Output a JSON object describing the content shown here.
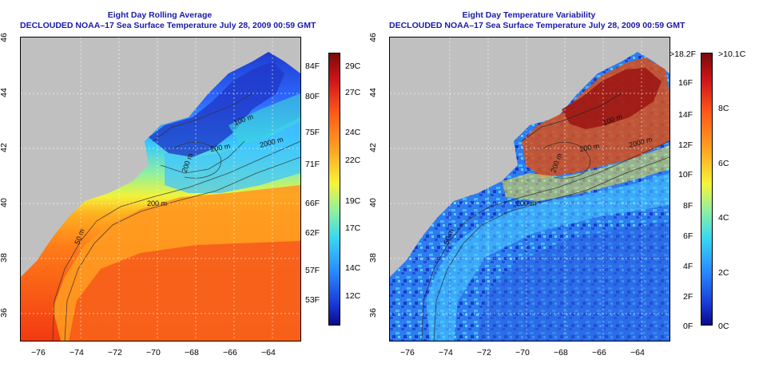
{
  "left": {
    "title": "Eight Day Rolling Average",
    "subtitle": "DECLOUDED NOAA–17 Sea Surface Temperature July 28, 2009 00:59 GMT",
    "legend_f": [
      "84F",
      "80F",
      "75F",
      "71F",
      "66F",
      "62F",
      "57F",
      "53F"
    ],
    "legend_c": [
      "29C",
      "27C",
      "24C",
      "22C",
      "19C",
      "17C",
      "14C",
      "12C"
    ],
    "contours": [
      "100 m",
      "200 m",
      "200 m",
      "200 m",
      "2000 m",
      "50 m"
    ]
  },
  "right": {
    "title": "Eight Day Temperature Variability",
    "subtitle": "DECLOUDED NOAA–17 Sea Surface Temperature July 28, 2009 00:59 GMT",
    "legend_f": [
      ">18.2F",
      "16F",
      "14F",
      "12F",
      "10F",
      "8F",
      "6F",
      "4F",
      "2F",
      "0F"
    ],
    "legend_c": [
      ">10.1C",
      "8C",
      "6C",
      "4C",
      "2C",
      "0C"
    ],
    "contours": [
      "100 m",
      "200 m",
      "200 m",
      "200 m",
      "2000 m",
      "50 m"
    ]
  },
  "axes": {
    "x_ticks": [
      "−76",
      "−74",
      "−72",
      "−70",
      "−68",
      "−66",
      "−64"
    ],
    "y_ticks": [
      "46",
      "44",
      "42",
      "40",
      "38",
      "36"
    ]
  },
  "colors": {
    "title": "#1a1aa6",
    "land": "#c0c0c0"
  }
}
